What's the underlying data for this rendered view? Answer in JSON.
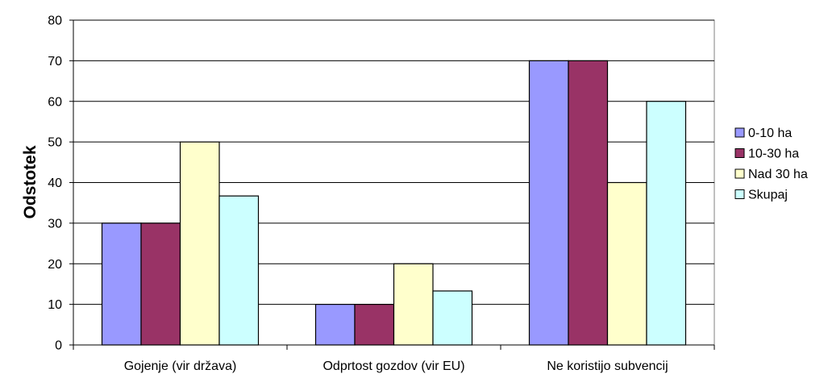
{
  "chart_data": {
    "type": "bar",
    "title": "",
    "xlabel": "",
    "ylabel": "Odstotek",
    "ylim": [
      0,
      80
    ],
    "yticks": [
      0,
      10,
      20,
      30,
      40,
      50,
      60,
      70,
      80
    ],
    "grid": true,
    "legend_position": "right",
    "categories": [
      "Gojenje (vir država)",
      "Odprtost gozdov (vir EU)",
      "Ne koristijo subvencij"
    ],
    "series": [
      {
        "name": "0-10 ha",
        "color": "#9999ff",
        "values": [
          30,
          10,
          70
        ]
      },
      {
        "name": "10-30 ha",
        "color": "#993366",
        "values": [
          30,
          10,
          70
        ]
      },
      {
        "name": "Nad 30 ha",
        "color": "#ffffcc",
        "values": [
          50,
          20,
          40
        ]
      },
      {
        "name": "Skupaj",
        "color": "#ccffff",
        "values": [
          36.7,
          13.3,
          60
        ]
      }
    ]
  }
}
